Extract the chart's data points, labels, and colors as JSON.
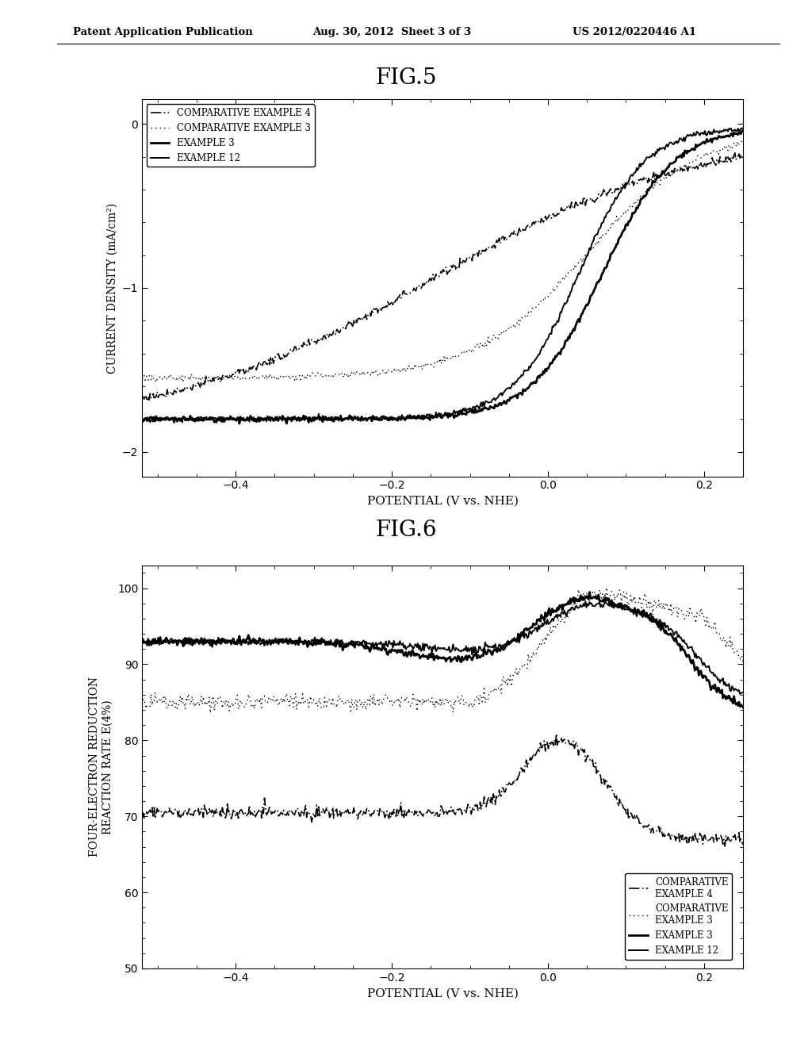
{
  "fig5_title": "FIG.5",
  "fig6_title": "FIG.6",
  "header_left": "Patent Application Publication",
  "header_center": "Aug. 30, 2012  Sheet 3 of 3",
  "header_right": "US 2012/0220446 A1",
  "fig5": {
    "xlabel": "POTENTIAL (V vs. NHE)",
    "ylabel": "CURRENT DENSITY (mA/cm²)",
    "xlim": [
      -0.52,
      0.25
    ],
    "ylim": [
      -2.15,
      0.15
    ],
    "xticks": [
      -0.4,
      -0.2,
      0.0,
      0.2
    ],
    "yticks": [
      0,
      -1,
      -2
    ]
  },
  "fig6": {
    "xlabel": "POTENTIAL (V vs. NHE)",
    "ylabel": "FOUR-ELECTRON REDUCTION\nREACTION RATE E(4%)",
    "xlim": [
      -0.52,
      0.25
    ],
    "ylim": [
      50,
      103
    ],
    "xticks": [
      -0.4,
      -0.2,
      0.0,
      0.2
    ],
    "yticks": [
      50,
      60,
      70,
      80,
      90,
      100
    ]
  },
  "background_color": "#ffffff",
  "line_color": "#000000"
}
